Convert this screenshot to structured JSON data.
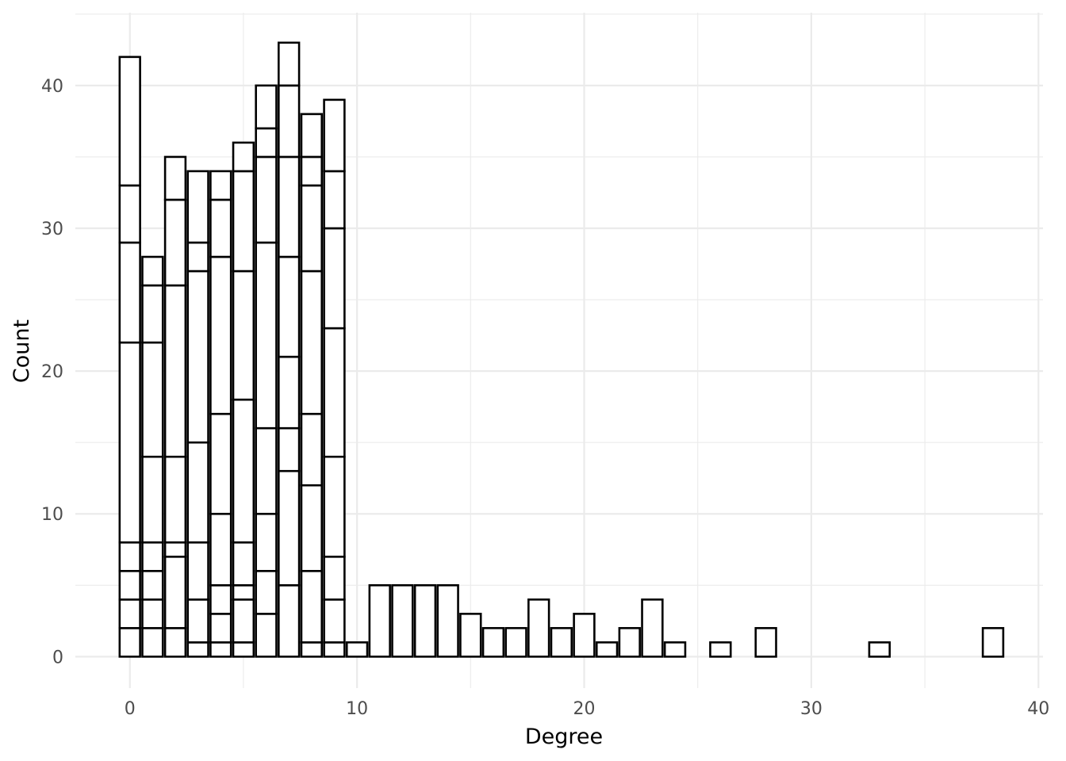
{
  "chart_data": {
    "type": "bar",
    "subtype": "stacked histogram",
    "xlabel": "Degree",
    "ylabel": "Count",
    "xlim": [
      -2.4,
      40.2
    ],
    "ylim": [
      -2.2,
      45.1
    ],
    "x_ticks": [
      0,
      10,
      20,
      30,
      40
    ],
    "y_ticks": [
      0,
      10,
      20,
      30,
      40
    ],
    "x_tick_labels": [
      "0",
      "10",
      "20",
      "30",
      "40"
    ],
    "y_tick_labels": [
      "0",
      "10",
      "20",
      "30",
      "40"
    ],
    "grid": true,
    "bar_fill": "#ffffff",
    "bar_outline": "#000000",
    "bins": [
      {
        "x": 0,
        "stack_boundaries": [
          2,
          4,
          6,
          8,
          22,
          29,
          33,
          42
        ]
      },
      {
        "x": 1,
        "stack_boundaries": [
          2,
          4,
          6,
          8,
          14,
          22,
          26,
          28
        ]
      },
      {
        "x": 2,
        "stack_boundaries": [
          2,
          7,
          8,
          14,
          26,
          32,
          35
        ]
      },
      {
        "x": 3,
        "stack_boundaries": [
          1,
          4,
          8,
          15,
          27,
          29,
          34
        ]
      },
      {
        "x": 4,
        "stack_boundaries": [
          1,
          3,
          5,
          10,
          17,
          28,
          32,
          34
        ]
      },
      {
        "x": 5,
        "stack_boundaries": [
          1,
          4,
          5,
          8,
          18,
          27,
          34,
          36
        ]
      },
      {
        "x": 6,
        "stack_boundaries": [
          3,
          6,
          10,
          16,
          29,
          35,
          37,
          40
        ]
      },
      {
        "x": 7,
        "stack_boundaries": [
          5,
          13,
          16,
          21,
          28,
          35,
          40,
          43
        ]
      },
      {
        "x": 8,
        "stack_boundaries": [
          1,
          6,
          12,
          17,
          27,
          33,
          35,
          38
        ]
      },
      {
        "x": 9,
        "stack_boundaries": [
          1,
          4,
          7,
          14,
          23,
          30,
          34,
          39
        ]
      },
      {
        "x": 10,
        "stack_boundaries": [
          1
        ]
      },
      {
        "x": 11,
        "stack_boundaries": [
          5
        ]
      },
      {
        "x": 12,
        "stack_boundaries": [
          5
        ]
      },
      {
        "x": 13,
        "stack_boundaries": [
          5
        ]
      },
      {
        "x": 14,
        "stack_boundaries": [
          5
        ]
      },
      {
        "x": 15,
        "stack_boundaries": [
          3
        ]
      },
      {
        "x": 16,
        "stack_boundaries": [
          2
        ]
      },
      {
        "x": 17,
        "stack_boundaries": [
          2
        ]
      },
      {
        "x": 18,
        "stack_boundaries": [
          4
        ]
      },
      {
        "x": 19,
        "stack_boundaries": [
          2
        ]
      },
      {
        "x": 20,
        "stack_boundaries": [
          3
        ]
      },
      {
        "x": 21,
        "stack_boundaries": [
          1
        ]
      },
      {
        "x": 22,
        "stack_boundaries": [
          2
        ]
      },
      {
        "x": 23,
        "stack_boundaries": [
          4
        ]
      },
      {
        "x": 24,
        "stack_boundaries": [
          1
        ]
      },
      {
        "x": 26,
        "stack_boundaries": [
          1
        ]
      },
      {
        "x": 28,
        "stack_boundaries": [
          2
        ]
      },
      {
        "x": 33,
        "stack_boundaries": [
          1
        ]
      },
      {
        "x": 38,
        "stack_boundaries": [
          2
        ]
      }
    ]
  }
}
